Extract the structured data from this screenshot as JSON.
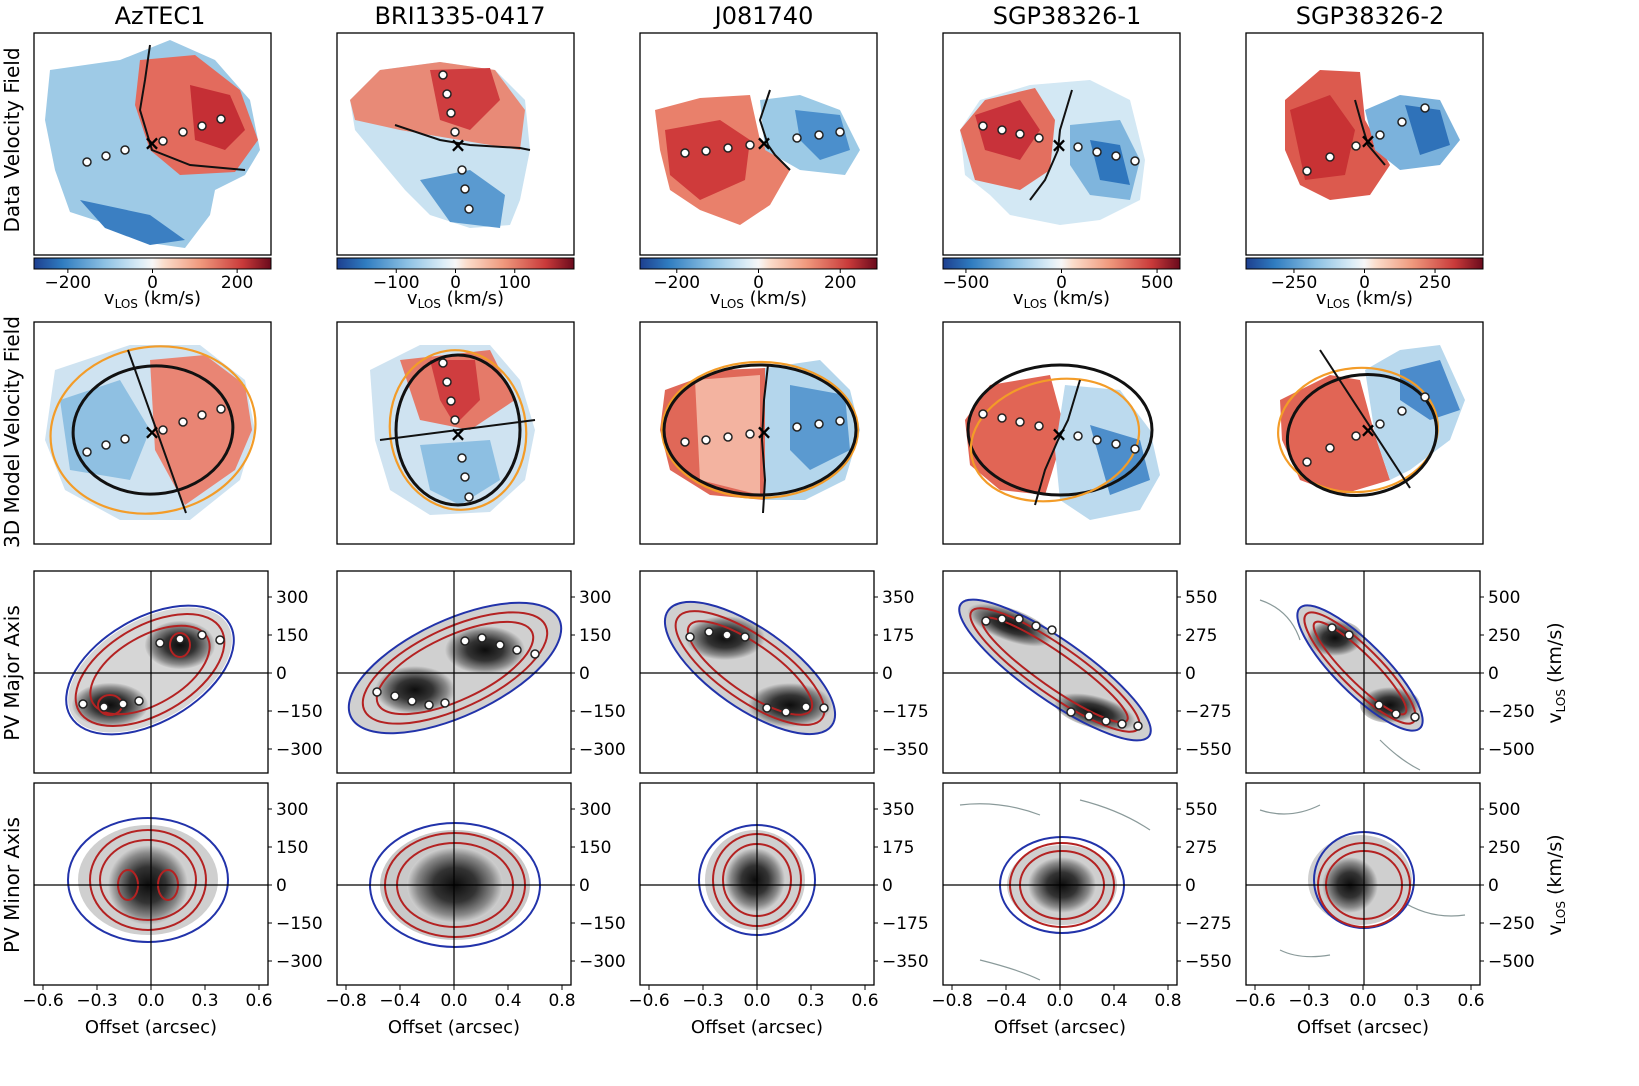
{
  "figure": {
    "columns": [
      "AzTEC1",
      "BRI1335-0417",
      "J081740",
      "SGP38326-1",
      "SGP38326-2"
    ],
    "row_labels": [
      "Data Velocity Field",
      "3D Model Velocity Field",
      "PV Major Axis",
      "PV Minor Axis"
    ],
    "colorbars": [
      {
        "ticks": [
          "−200",
          "0",
          "200"
        ],
        "values": [
          -200,
          0,
          200
        ],
        "range": [
          -280,
          280
        ],
        "label": "v",
        "label_sub": "LOS",
        "label_unit": " (km/s)"
      },
      {
        "ticks": [
          "−100",
          "0",
          "100"
        ],
        "values": [
          -100,
          0,
          100
        ],
        "range": [
          -200,
          200
        ],
        "label": "v",
        "label_sub": "LOS",
        "label_unit": " (km/s)"
      },
      {
        "ticks": [
          "−200",
          "0",
          "200"
        ],
        "values": [
          -200,
          0,
          200
        ],
        "range": [
          -290,
          290
        ],
        "label": "v",
        "label_sub": "LOS",
        "label_unit": " (km/s)"
      },
      {
        "ticks": [
          "−500",
          "0",
          "500"
        ],
        "values": [
          -500,
          0,
          500
        ],
        "range": [
          -620,
          620
        ],
        "label": "v",
        "label_sub": "LOS",
        "label_unit": " (km/s)"
      },
      {
        "ticks": [
          "−250",
          "0",
          "250"
        ],
        "values": [
          -250,
          0,
          250
        ],
        "range": [
          -420,
          420
        ],
        "label": "v",
        "label_sub": "LOS",
        "label_unit": " (km/s)"
      }
    ],
    "pv_y_ticks": [
      [
        "300",
        "150",
        "0",
        "−150",
        "−300"
      ],
      [
        "300",
        "150",
        "0",
        "−150",
        "−300"
      ],
      [
        "350",
        "175",
        "0",
        "−175",
        "−350"
      ],
      [
        "550",
        "275",
        "0",
        "−275",
        "−550"
      ],
      [
        "500",
        "250",
        "0",
        "−250",
        "−500"
      ]
    ],
    "pv_x_ticks": [
      [
        "−0.6",
        "−0.3",
        "0.0",
        "0.3",
        "0.6"
      ],
      [
        "−0.8",
        "−0.4",
        "0.0",
        "0.4",
        "0.8"
      ],
      [
        "−0.6",
        "−0.3",
        "0.0",
        "0.3",
        "0.6"
      ],
      [
        "−0.8",
        "−0.4",
        "0.0",
        "0.4",
        "0.8"
      ],
      [
        "−0.6",
        "−0.3",
        "0.0",
        "0.3",
        "0.6"
      ]
    ],
    "pv_x_label": "Offset (arcsec)",
    "pv_y_label": "v",
    "pv_y_label_sub": "LOS",
    "pv_y_label_unit": " (km/s)",
    "colors": {
      "neg_velocity": "#2166ac",
      "pos_velocity": "#b2182b",
      "model_ellipse_black": "#111111",
      "model_ellipse_orange": "#f39c28",
      "contour_blue": "#2233aa",
      "contour_red": "#b42222",
      "contour_gray": "#7a8a8a"
    }
  }
}
